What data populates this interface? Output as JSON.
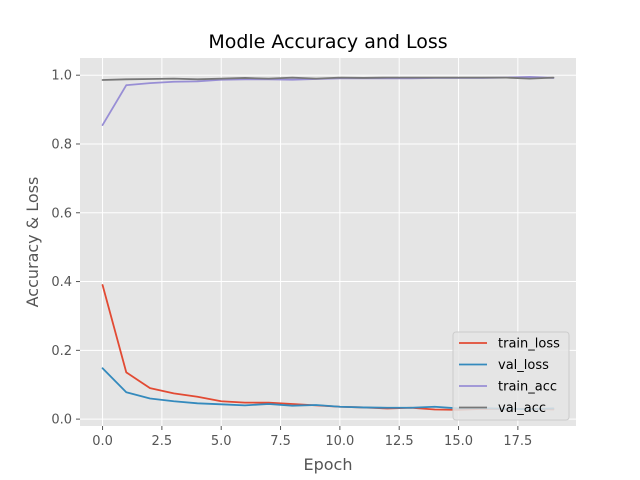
{
  "chart_data": {
    "type": "line",
    "title": "Modle Accuracy and Loss",
    "xlabel": "Epoch",
    "ylabel": "Accuracy & Loss",
    "xlim": [
      -0.95,
      19.95
    ],
    "ylim": [
      -0.02,
      1.05
    ],
    "xticks": [
      0.0,
      2.5,
      5.0,
      7.5,
      10.0,
      12.5,
      15.0,
      17.5
    ],
    "xtick_labels": [
      "0.0",
      "2.5",
      "5.0",
      "7.5",
      "10.0",
      "12.5",
      "15.0",
      "17.5"
    ],
    "yticks": [
      0.0,
      0.2,
      0.4,
      0.6,
      0.8,
      1.0
    ],
    "ytick_labels": [
      "0.0",
      "0.2",
      "0.4",
      "0.6",
      "0.8",
      "1.0"
    ],
    "grid": true,
    "legend_position": "lower-right",
    "x": [
      0,
      1,
      2,
      3,
      4,
      5,
      6,
      7,
      8,
      9,
      10,
      11,
      12,
      13,
      14,
      15,
      16,
      17,
      18,
      19
    ],
    "series": [
      {
        "name": "train_loss",
        "color": "#E24A33",
        "values": [
          0.39,
          0.136,
          0.09,
          0.075,
          0.065,
          0.052,
          0.048,
          0.048,
          0.044,
          0.04,
          0.036,
          0.034,
          0.031,
          0.033,
          0.028,
          0.027,
          0.03,
          0.029,
          0.03,
          0.028
        ]
      },
      {
        "name": "val_loss",
        "color": "#348ABD",
        "values": [
          0.148,
          0.078,
          0.06,
          0.052,
          0.046,
          0.043,
          0.04,
          0.044,
          0.039,
          0.041,
          0.036,
          0.034,
          0.033,
          0.033,
          0.036,
          0.031,
          0.032,
          0.03,
          0.029,
          0.031
        ]
      },
      {
        "name": "train_acc",
        "color": "#988ED5",
        "values": [
          0.855,
          0.971,
          0.977,
          0.981,
          0.982,
          0.987,
          0.988,
          0.988,
          0.987,
          0.989,
          0.991,
          0.991,
          0.991,
          0.991,
          0.992,
          0.992,
          0.992,
          0.993,
          0.995,
          0.992
        ]
      },
      {
        "name": "val_acc",
        "color": "#777777",
        "values": [
          0.986,
          0.988,
          0.989,
          0.99,
          0.988,
          0.99,
          0.992,
          0.99,
          0.993,
          0.99,
          0.993,
          0.992,
          0.993,
          0.993,
          0.993,
          0.993,
          0.993,
          0.993,
          0.99,
          0.993
        ]
      }
    ]
  }
}
